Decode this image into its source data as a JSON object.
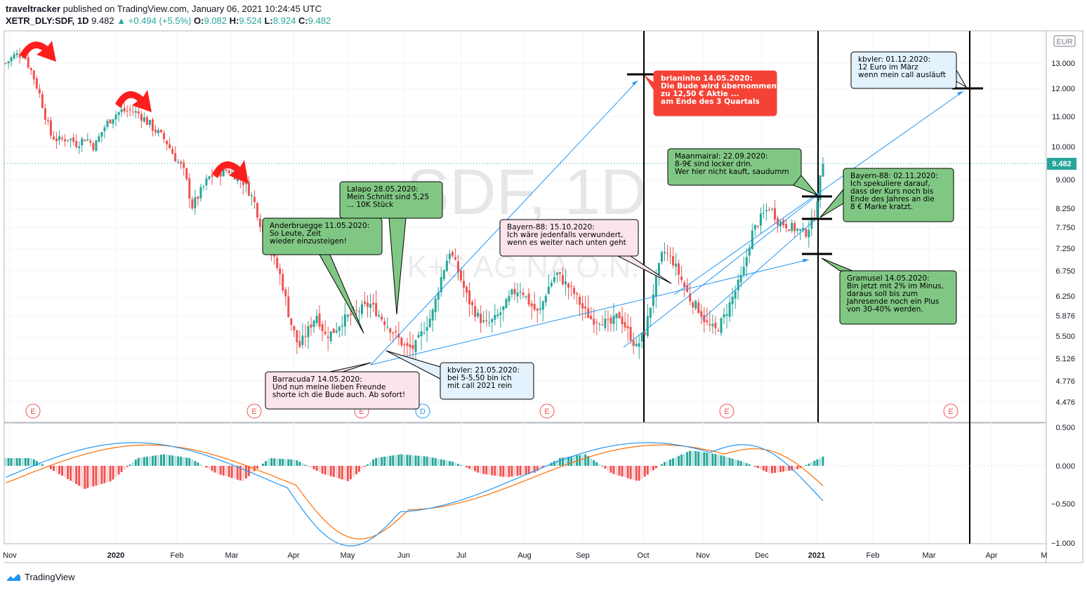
{
  "header": {
    "publisher": "traveltracker",
    "published_text": " published on TradingView.com, January 06, 2021 10:24:45 UTC",
    "symbol": "XETR_DLY:SDF, 1D",
    "last": "9.482",
    "change": "▲ +0.494 (+5.5%)",
    "o_label": "O:",
    "o": "9.082",
    "h_label": "H:",
    "h": "9.524",
    "l_label": "L:",
    "l": "8.924",
    "c_label": "C:",
    "c": "9.482"
  },
  "watermark": {
    "line1": "SDF, 1D",
    "line2": "K+S AG NA O.N."
  },
  "footer": {
    "brand": "TradingView"
  },
  "colors": {
    "up": "#26a69a",
    "down": "#ef5350",
    "macd": "#2196f3",
    "signal": "#ff6d00",
    "arrow": "#ff1e1e"
  },
  "chart_data": {
    "type": "candlestick",
    "currency": "EUR",
    "last_price_label": "9.482",
    "price_ticks": [
      "13.000",
      "12.000",
      "11.000",
      "10.000",
      "9.000",
      "8.250",
      "7.750",
      "7.250",
      "6.750",
      "6.250",
      "5.876",
      "5.500",
      "5.126",
      "4.776",
      "4.476"
    ],
    "macd_ticks": [
      "0.500",
      "0.000",
      "−0.500",
      "−1.000"
    ],
    "x_ticks": [
      "Nov",
      "2020",
      "Feb",
      "Mar",
      "Apr",
      "May",
      "Jun",
      "Jul",
      "Aug",
      "Sep",
      "Oct",
      "Nov",
      "Dec",
      "2021",
      "Feb",
      "Mar",
      "Apr",
      "M"
    ],
    "earnings_markers": [
      "E",
      "E",
      "E",
      "D",
      "E",
      "E",
      "E"
    ],
    "close_series": [
      13.0,
      13.3,
      13.4,
      12.6,
      11.6,
      10.4,
      10.2,
      10.3,
      10.1,
      10.3,
      10.0,
      10.6,
      11.0,
      11.2,
      11.2,
      11.1,
      10.8,
      10.5,
      10.2,
      9.7,
      9.3,
      8.3,
      8.7,
      9.1,
      9.2,
      9.3,
      9.1,
      8.9,
      8.4,
      7.6,
      7.1,
      6.6,
      5.8,
      5.3,
      5.6,
      5.9,
      5.5,
      5.6,
      5.8,
      5.9,
      6.0,
      6.1,
      5.9,
      5.7,
      5.5,
      5.3,
      5.3,
      5.6,
      5.9,
      6.6,
      7.2,
      6.7,
      6.2,
      5.9,
      5.7,
      5.8,
      6.0,
      6.3,
      6.4,
      6.1,
      5.9,
      6.4,
      6.7,
      6.5,
      6.3,
      6.0,
      5.8,
      5.8,
      5.7,
      5.9,
      5.6,
      5.3,
      5.6,
      6.4,
      7.2,
      7.0,
      6.6,
      6.2,
      6.0,
      5.7,
      5.6,
      5.9,
      6.3,
      6.7,
      7.6,
      8.0,
      8.3,
      7.9,
      7.8,
      7.7,
      7.6,
      8.0,
      9.48
    ],
    "macd_hist_sample": [
      0.1,
      0.1,
      -0.1,
      -0.3,
      -0.2,
      0.1,
      0.15,
      0.1,
      -0.1,
      -0.2,
      0.1,
      0.08,
      -0.1,
      -0.2,
      0.1,
      0.15,
      0.12,
      0.05,
      -0.1,
      -0.15,
      -0.1,
      0.1,
      0.15,
      -0.1,
      -0.2,
      0.05,
      0.2,
      0.15,
      0.05,
      -0.1,
      -0.05,
      0.12
    ],
    "levels": [
      12.5,
      12.0,
      8.5,
      7.95,
      7.1
    ]
  },
  "annotations": [
    {
      "name": "note-brianinho",
      "lines": [
        "brianinho 14.05.2020:",
        "Die Bude wird übernommen",
        "zu 12,50 € Aktie ...",
        "am Ende des 3 Quartals"
      ]
    },
    {
      "name": "note-kbvler-dec",
      "lines": [
        "kbvler: 01.12.2020:",
        "12 Euro im März",
        "wenn mein call ausläuft"
      ]
    },
    {
      "name": "note-maanmairal",
      "lines": [
        "Maanmairal:  22.09.2020:",
        "8-9€ sind locker drin.",
        "Wer hier nicht kauft, saudumm"
      ]
    },
    {
      "name": "note-bayern-nov",
      "lines": [
        "Bayern-88: 02.11.2020:",
        "Ich spekuliere darauf,",
        "dass der Kurs noch bis",
        "Ende des Jahres an die",
        "8 € Marke kratzt."
      ]
    },
    {
      "name": "note-gramusel",
      "lines": [
        "Gramusel 14.05.2020:",
        "Bin jetzt mit 2% im Minus,",
        "daraus soll bis zum",
        "Jahresende noch ein Plus",
        "von 30-40% werden."
      ]
    },
    {
      "name": "note-lalapo",
      "lines": [
        "Lalapo 28.05.2020:",
        "Mein Schnitt sind 5,25",
        "... 10K Stück"
      ]
    },
    {
      "name": "note-anderbruegge",
      "lines": [
        "Anderbruegge 11.05.2020:",
        "So Leute, Zeit",
        "wieder einzusteigen!"
      ]
    },
    {
      "name": "note-bayern-oct",
      "lines": [
        "Bayern-88: 15.10.2020:",
        "Ich wäre jedenfalls verwundert,",
        "wenn es weiter nach unten geht"
      ]
    },
    {
      "name": "note-barracuda",
      "lines": [
        "Barracuda7 14.05.2020:",
        "Und nun meine lieben Freunde",
        "shorte ich die Bude auch. Ab sofort!"
      ]
    },
    {
      "name": "note-kbvler-may",
      "lines": [
        "kbvler:  21.05.2020:",
        "bei 5-5,50 bin ich",
        "mit call 2021 rein"
      ]
    }
  ]
}
